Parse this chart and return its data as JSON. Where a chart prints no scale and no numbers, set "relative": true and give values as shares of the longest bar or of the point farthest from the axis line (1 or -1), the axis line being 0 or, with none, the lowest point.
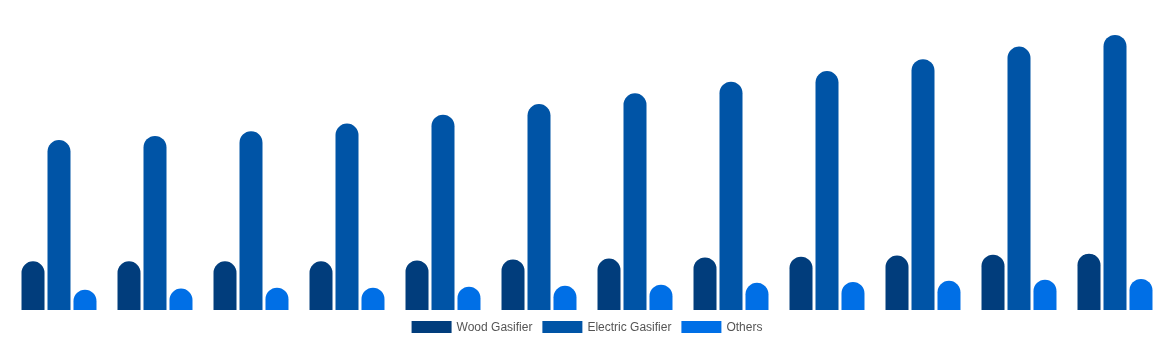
{
  "chart_data": {
    "type": "bar",
    "relative": true,
    "categories": [
      null,
      null,
      null,
      null,
      null,
      null,
      null,
      null,
      null,
      null,
      null,
      null
    ],
    "series": [
      {
        "name": "Wood Gasifier",
        "color": "#013d7c",
        "values": [
          0.177,
          0.177,
          0.177,
          0.177,
          0.18,
          0.184,
          0.187,
          0.191,
          0.194,
          0.198,
          0.201,
          0.205
        ]
      },
      {
        "name": "Electric Gasifier",
        "color": "#0054a6",
        "values": [
          0.618,
          0.633,
          0.65,
          0.678,
          0.71,
          0.749,
          0.788,
          0.83,
          0.869,
          0.912,
          0.958,
          1
        ]
      },
      {
        "name": "Others",
        "color": "#006fe6",
        "values": [
          0.074,
          0.078,
          0.081,
          0.081,
          0.085,
          0.088,
          0.092,
          0.099,
          0.102,
          0.106,
          0.11,
          0.113
        ]
      }
    ],
    "legend": "bottom"
  }
}
